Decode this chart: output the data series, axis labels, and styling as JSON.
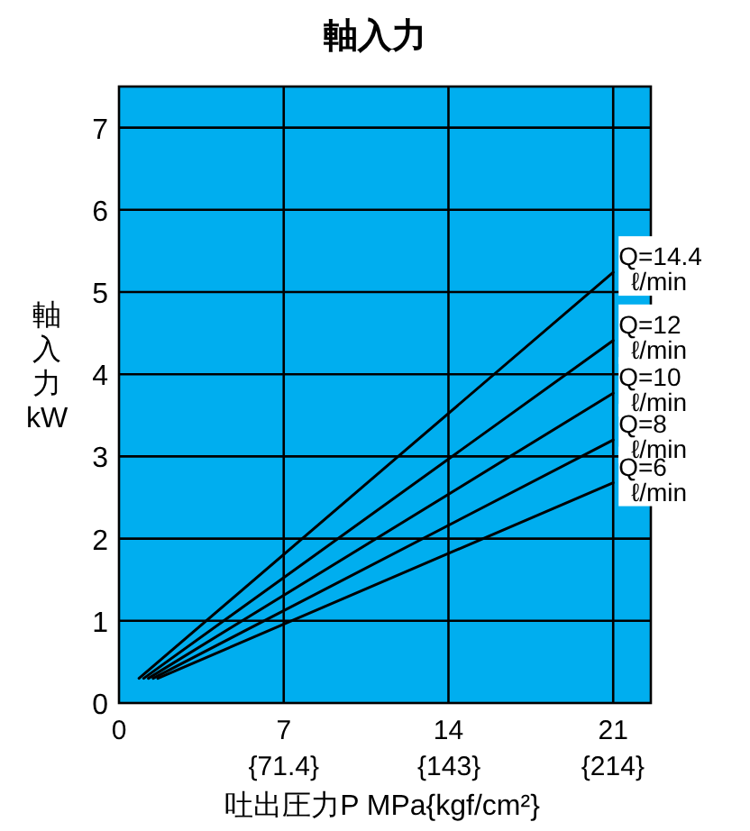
{
  "chart_data": {
    "type": "line",
    "title": "軸入力",
    "xlabel": "吐出圧力P MPa{kgf/cm²}",
    "ylabel": "軸入力kW",
    "xlim": [
      0,
      22.6
    ],
    "ylim": [
      0,
      7.5
    ],
    "xticks": [
      0,
      7,
      14,
      21
    ],
    "x2lim": [
      0,
      230.45
    ],
    "x2ticks": [
      {
        "value": 71.4,
        "label": "{71.4}"
      },
      {
        "value": 143,
        "label": "{143}"
      },
      {
        "value": 214,
        "label": "{214}"
      }
    ],
    "yticks": [
      0,
      1,
      2,
      3,
      4,
      5,
      6,
      7
    ],
    "grid": true,
    "legend": false,
    "marker": "none",
    "line_style": "solid",
    "series": [
      {
        "name": "Q=14.4 ℓ/min",
        "color": "#000000",
        "x": [
          0.85,
          21
        ],
        "values": [
          0.3,
          5.24
        ]
      },
      {
        "name": "Q=12 ℓ/min",
        "color": "#000000",
        "x": [
          1.05,
          21
        ],
        "values": [
          0.3,
          4.41
        ]
      },
      {
        "name": "Q=10 ℓ/min",
        "color": "#000000",
        "x": [
          1.25,
          21
        ],
        "values": [
          0.3,
          3.77
        ]
      },
      {
        "name": "Q=8 ℓ/min",
        "color": "#000000",
        "x": [
          1.45,
          21
        ],
        "values": [
          0.3,
          3.2
        ]
      },
      {
        "name": "Q=6 ℓ/min",
        "color": "#000000",
        "x": [
          1.65,
          21
        ],
        "values": [
          0.3,
          2.68
        ]
      }
    ]
  }
}
